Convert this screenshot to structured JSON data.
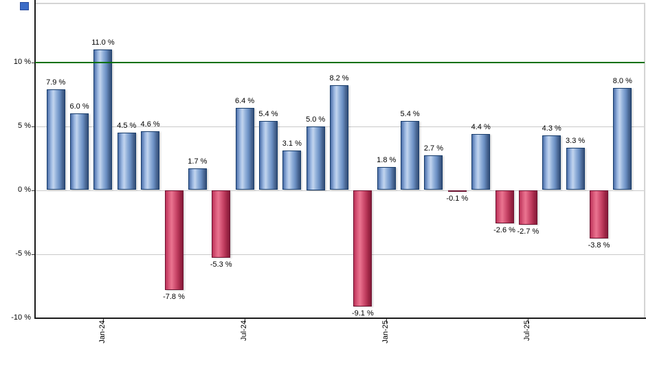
{
  "chart_data": {
    "type": "bar",
    "title": "",
    "xlabel": "",
    "ylabel": "",
    "bars": [
      {
        "value": 7.9,
        "label": "7.9 %"
      },
      {
        "value": 6.0,
        "label": "6.0 %"
      },
      {
        "value": 11.0,
        "label": "11.0 %"
      },
      {
        "value": 4.5,
        "label": "4.5 %"
      },
      {
        "value": 4.6,
        "label": "4.6 %"
      },
      {
        "value": -7.8,
        "label": "-7.8 %"
      },
      {
        "value": 1.7,
        "label": "1.7 %"
      },
      {
        "value": -5.3,
        "label": "-5.3 %"
      },
      {
        "value": 6.4,
        "label": "6.4 %"
      },
      {
        "value": 5.4,
        "label": "5.4 %"
      },
      {
        "value": 3.1,
        "label": "3.1 %"
      },
      {
        "value": 5.0,
        "label": "5.0 %"
      },
      {
        "value": 8.2,
        "label": "8.2 %"
      },
      {
        "value": -9.1,
        "label": "-9.1 %"
      },
      {
        "value": 1.8,
        "label": "1.8 %"
      },
      {
        "value": 5.4,
        "label": "5.4 %"
      },
      {
        "value": 2.7,
        "label": "2.7 %"
      },
      {
        "value": -0.1,
        "label": "-0.1 %"
      },
      {
        "value": 4.4,
        "label": "4.4 %"
      },
      {
        "value": -2.6,
        "label": "-2.6 %"
      },
      {
        "value": -2.7,
        "label": "-2.7 %"
      },
      {
        "value": 4.3,
        "label": "4.3 %"
      },
      {
        "value": 3.3,
        "label": "3.3 %"
      },
      {
        "value": -3.8,
        "label": "-3.8 %"
      },
      {
        "value": 8.0,
        "label": "8.0 %"
      }
    ],
    "x_ticks": [
      {
        "index": 2,
        "label": "Jan-24"
      },
      {
        "index": 8,
        "label": "Jul-24"
      },
      {
        "index": 14,
        "label": "Jan-25"
      },
      {
        "index": 20,
        "label": "Jul-25"
      }
    ],
    "y_ticks": [
      {
        "value": 10,
        "label": "10 %"
      },
      {
        "value": 5,
        "label": "5 %"
      },
      {
        "value": 0,
        "label": "0 %"
      },
      {
        "value": -5,
        "label": "-5 %"
      },
      {
        "value": -10,
        "label": "-10 %"
      }
    ],
    "ylim": [
      -10,
      14.6
    ],
    "grid": true,
    "legend_position": "none",
    "threshold_line": {
      "value": 10,
      "color": "#007000"
    },
    "colors": {
      "positive_bar": "#8fafdb",
      "positive_border": "#173c6b",
      "negative_bar": "#cf4a6d",
      "negative_border": "#6d1230",
      "gridline": "#c9c9c9",
      "axis": "#1a1a1a",
      "frame": "#d4d4d4",
      "corner_marker": "#3b6cc7"
    }
  }
}
